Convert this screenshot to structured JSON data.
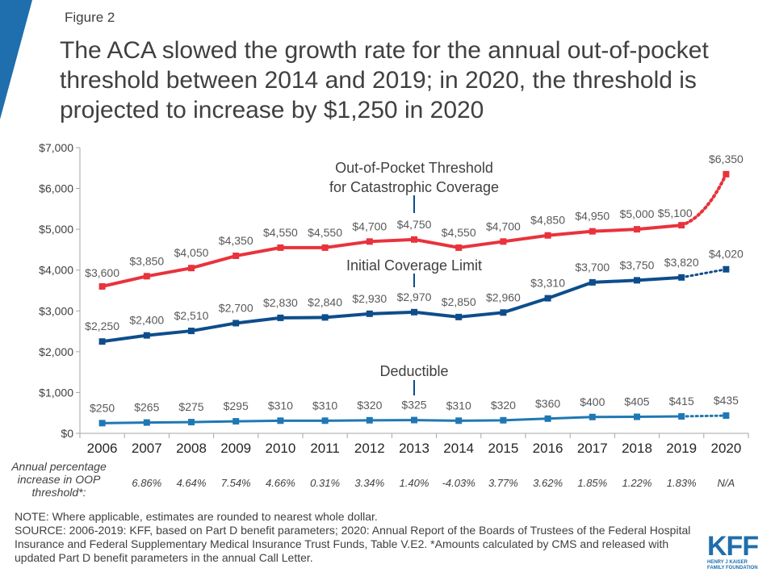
{
  "figure_label": "Figure 2",
  "title": "The ACA slowed the growth rate for the annual out-of-pocket threshold between 2014 and 2019; in 2020, the threshold is projected to increase by $1,250 in 2020",
  "chart_data": {
    "type": "line",
    "x": [
      "2006",
      "2007",
      "2008",
      "2009",
      "2010",
      "2011",
      "2012",
      "2013",
      "2014",
      "2015",
      "2016",
      "2017",
      "2018",
      "2019",
      "2020"
    ],
    "ylim": [
      0,
      7000
    ],
    "y_ticks": [
      "$0",
      "$1,000",
      "$2,000",
      "$3,000",
      "$4,000",
      "$5,000",
      "$6,000",
      "$7,000"
    ],
    "y_tick_values": [
      0,
      1000,
      2000,
      3000,
      4000,
      5000,
      6000,
      7000
    ],
    "projected_from_index": 13,
    "series": [
      {
        "name": "Out-of-Pocket Threshold for Catastrophic Coverage",
        "label_lines": [
          "Out-of-Pocket Threshold",
          "for Catastrophic Coverage"
        ],
        "color": "#e8333c",
        "values": [
          3600,
          3850,
          4050,
          4350,
          4550,
          4550,
          4700,
          4750,
          4550,
          4700,
          4850,
          4950,
          5000,
          5100,
          6350
        ],
        "data_labels": [
          "$3,600",
          "$3,850",
          "$4,050",
          "$4,350",
          "$4,550",
          "$4,550",
          "$4,700",
          "$4,750",
          "$4,550",
          "$4,700",
          "$4,850",
          "$4,950",
          "$5,000",
          "$5,100",
          "$6,350"
        ]
      },
      {
        "name": "Initial Coverage Limit",
        "label_lines": [
          "Initial Coverage Limit"
        ],
        "color": "#0e4d8c",
        "values": [
          2250,
          2400,
          2510,
          2700,
          2830,
          2840,
          2930,
          2970,
          2850,
          2960,
          3310,
          3700,
          3750,
          3820,
          4020
        ],
        "data_labels": [
          "$2,250",
          "$2,400",
          "$2,510",
          "$2,700",
          "$2,830",
          "$2,840",
          "$2,930",
          "$2,970",
          "$2,850",
          "$2,960",
          "$3,310",
          "$3,700",
          "$3,750",
          "$3,820",
          "$4,020"
        ]
      },
      {
        "name": "Deductible",
        "label_lines": [
          "Deductible"
        ],
        "color": "#1f78b4",
        "values": [
          250,
          265,
          275,
          295,
          310,
          310,
          320,
          325,
          310,
          320,
          360,
          400,
          405,
          415,
          435
        ],
        "data_labels": [
          "$250",
          "$265",
          "$275",
          "$295",
          "$310",
          "$310",
          "$320",
          "$325",
          "$310",
          "$320",
          "$360",
          "$400",
          "$405",
          "$415",
          "$435"
        ]
      }
    ],
    "grid": false,
    "legend": "inline"
  },
  "pct_caption_lines": [
    "Annual percentage",
    "increase in OOP",
    "threshold*:"
  ],
  "pct_values": [
    "6.86%",
    "4.64%",
    "7.54%",
    "4.66%",
    "0.31%",
    "3.34%",
    "1.40%",
    "-4.03%",
    "3.77%",
    "3.62%",
    "1.85%",
    "1.22%",
    "1.83%",
    "N/A"
  ],
  "notes": [
    "NOTE: Where applicable, estimates are rounded to nearest whole dollar.",
    "SOURCE: 2006-2019: KFF, based on Part D benefit parameters; 2020: Annual Report of the Boards of Trustees of the Federal Hospital Insurance  and Federal Supplementary Medical Insurance Trust Funds, Table V.E2. *Amounts calculated by CMS and released with updated Part D benefit parameters in the annual Call Letter."
  ],
  "logo": {
    "main": "KFF",
    "sub_lines": [
      "HENRY J KAISER",
      "FAMILY FOUNDATION"
    ],
    "color": "#1f6ead"
  }
}
